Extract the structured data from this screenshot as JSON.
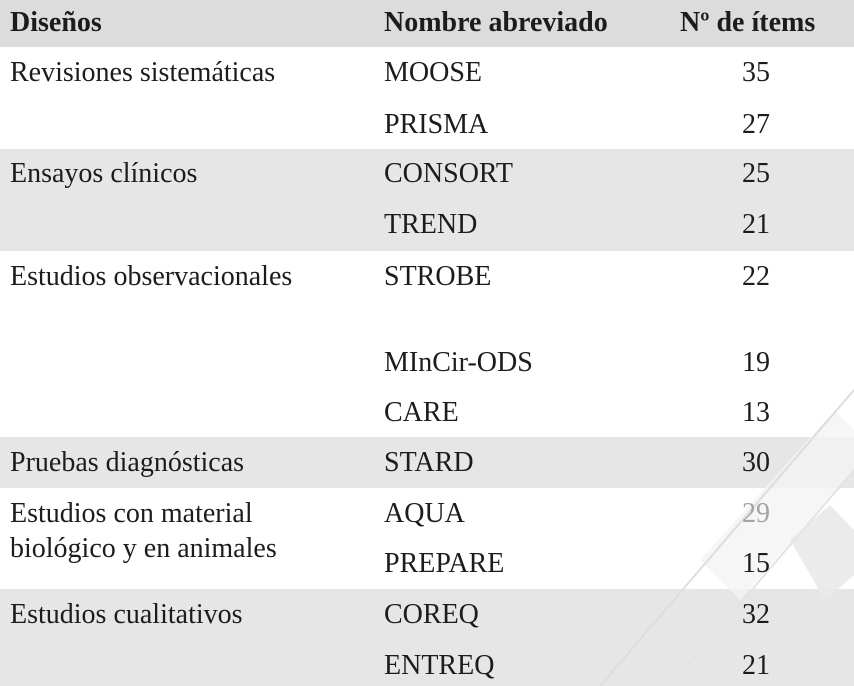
{
  "header": {
    "col_design": "Diseños",
    "col_abbrev": "Nombre abreviado",
    "col_items": "Nº de ítems"
  },
  "groups": [
    {
      "design": "Revisiones sistemáticas",
      "rows": [
        {
          "name": "MOOSE",
          "items": "35"
        },
        {
          "name": "PRISMA",
          "items": "27"
        }
      ]
    },
    {
      "design": "Ensayos clínicos",
      "rows": [
        {
          "name": "CONSORT",
          "items": "25"
        },
        {
          "name": "TREND",
          "items": "21"
        }
      ]
    },
    {
      "design": "Estudios observacionales",
      "rows": [
        {
          "name": "STROBE",
          "items": "22"
        },
        {
          "name": "MInCir-ODS",
          "items": "19"
        },
        {
          "name": "CARE",
          "items": "13"
        }
      ]
    },
    {
      "design": "Pruebas diagnósticas",
      "rows": [
        {
          "name": "STARD",
          "items": "30"
        }
      ]
    },
    {
      "design_line1": "Estudios con material",
      "design_line2": "biológico y en animales",
      "rows": [
        {
          "name": "AQUA",
          "items": "29"
        },
        {
          "name": "PREPARE",
          "items": "15"
        }
      ]
    },
    {
      "design": "Estudios cualitativos",
      "rows": [
        {
          "name": "COREQ",
          "items": "32"
        },
        {
          "name": "ENTREQ",
          "items": "21"
        }
      ]
    }
  ]
}
